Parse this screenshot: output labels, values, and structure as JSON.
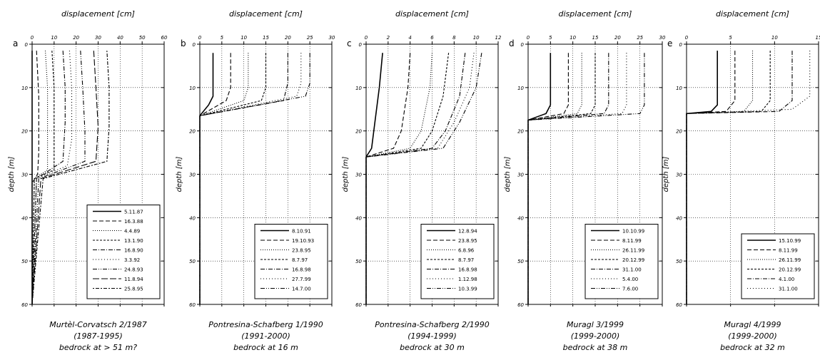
{
  "chart_data": [
    {
      "type": "line",
      "panel_letter": "a",
      "xlabel": "displacement [cm]",
      "ylabel": "depth [m]",
      "xlim": [
        0,
        60
      ],
      "ylim": [
        0,
        60
      ],
      "xticks": [
        "0",
        "10",
        "20",
        "30",
        "40",
        "50",
        "60"
      ],
      "yticks": [
        "0",
        "10",
        "20",
        "30",
        "40",
        "50",
        "60"
      ],
      "grid": true,
      "caption": [
        "Murtèl-Corvatsch 2/1987",
        "(1987-1995)",
        "bedrock at > 51 m?"
      ],
      "series": [
        {
          "name": "5.11.87",
          "style": "solid",
          "points": [
            [
              0,
              1.5
            ],
            [
              0,
              30
            ],
            [
              0,
              60
            ]
          ]
        },
        {
          "name": "16.3.88",
          "style": "dash",
          "points": [
            [
              2,
              1.5
            ],
            [
              3,
              12
            ],
            [
              3,
              25
            ],
            [
              2.5,
              30
            ],
            [
              0,
              32
            ],
            [
              0,
              60
            ]
          ]
        },
        {
          "name": "4.4.89",
          "style": "dot",
          "points": [
            [
              6,
              1.5
            ],
            [
              7,
              10
            ],
            [
              7,
              22
            ],
            [
              7,
              29
            ],
            [
              1,
              31
            ],
            [
              0,
              60
            ]
          ]
        },
        {
          "name": "13.1.90",
          "style": "dash2",
          "points": [
            [
              9,
              1.5
            ],
            [
              10,
              10
            ],
            [
              10,
              23
            ],
            [
              10,
              29
            ],
            [
              1,
              31
            ],
            [
              0,
              60
            ]
          ]
        },
        {
          "name": "16.8.90",
          "style": "dashdot",
          "points": [
            [
              14,
              1.5
            ],
            [
              15,
              10
            ],
            [
              15,
              18
            ],
            [
              14,
              27
            ],
            [
              2,
              31
            ],
            [
              0,
              60
            ]
          ]
        },
        {
          "name": "3.3.92",
          "style": "dot2",
          "points": [
            [
              17,
              1.5
            ],
            [
              18,
              10
            ],
            [
              18,
              22
            ],
            [
              16,
              28
            ],
            [
              2,
              31
            ],
            [
              0,
              60
            ]
          ]
        },
        {
          "name": "24.8.93",
          "style": "dashdotdot",
          "points": [
            [
              22,
              1.5
            ],
            [
              23,
              10
            ],
            [
              24,
              20
            ],
            [
              24,
              27
            ],
            [
              3,
              31
            ],
            [
              0,
              60
            ]
          ]
        },
        {
          "name": "11.8.94",
          "style": "longdash",
          "points": [
            [
              28,
              1.5
            ],
            [
              29,
              10
            ],
            [
              30,
              19
            ],
            [
              29,
              27
            ],
            [
              4,
              31
            ],
            [
              0,
              60
            ]
          ]
        },
        {
          "name": "25.8.95",
          "style": "dotdash",
          "points": [
            [
              34,
              1.5
            ],
            [
              35,
              10
            ],
            [
              35,
              19
            ],
            [
              34,
              27
            ],
            [
              5,
              31
            ],
            [
              0,
              60
            ]
          ]
        }
      ]
    },
    {
      "type": "line",
      "panel_letter": "b",
      "xlabel": "displacement [cm]",
      "ylabel": "depth [m]",
      "xlim": [
        0,
        30
      ],
      "ylim": [
        0,
        60
      ],
      "xticks": [
        "0",
        "5",
        "10",
        "15",
        "20",
        "25",
        "30"
      ],
      "yticks": [
        "0",
        "10",
        "20",
        "30",
        "40",
        "50",
        "60"
      ],
      "grid": true,
      "caption": [
        "Pontresina-Schafberg 1/1990",
        "(1991-2000)",
        "bedrock at 16 m"
      ],
      "series": [
        {
          "name": "8.10.91",
          "style": "solid",
          "points": [
            [
              3,
              2
            ],
            [
              3,
              12
            ],
            [
              2,
              14
            ],
            [
              0,
              16.5
            ],
            [
              0,
              60
            ]
          ]
        },
        {
          "name": "19.10.93",
          "style": "dash",
          "points": [
            [
              7,
              2
            ],
            [
              7,
              10
            ],
            [
              6,
              13
            ],
            [
              0,
              16.5
            ],
            [
              0,
              60
            ]
          ]
        },
        {
          "name": "23.8.95",
          "style": "dot",
          "points": [
            [
              11,
              2
            ],
            [
              11,
              10
            ],
            [
              10,
              13
            ],
            [
              0,
              16.5
            ],
            [
              0,
              60
            ]
          ]
        },
        {
          "name": "8.7.97",
          "style": "dash2",
          "points": [
            [
              15,
              2
            ],
            [
              15,
              10
            ],
            [
              14,
              13
            ],
            [
              0,
              16.5
            ],
            [
              0,
              60
            ]
          ]
        },
        {
          "name": "16.8.98",
          "style": "dashdot",
          "points": [
            [
              20,
              2
            ],
            [
              20,
              9
            ],
            [
              19,
              13
            ],
            [
              0,
              16.5
            ],
            [
              0,
              60
            ]
          ]
        },
        {
          "name": "27.7.99",
          "style": "dot2",
          "points": [
            [
              23,
              2
            ],
            [
              23,
              9
            ],
            [
              22,
              12
            ],
            [
              0,
              16.5
            ],
            [
              0,
              60
            ]
          ]
        },
        {
          "name": "14.7.00",
          "style": "dashdotdot",
          "points": [
            [
              25,
              2
            ],
            [
              25,
              9
            ],
            [
              24,
              12
            ],
            [
              0,
              16.5
            ],
            [
              0,
              60
            ]
          ]
        }
      ]
    },
    {
      "type": "line",
      "panel_letter": "c",
      "xlabel": "displacement [cm]",
      "ylabel": "depth [m]",
      "xlim": [
        0,
        12
      ],
      "ylim": [
        0,
        60
      ],
      "xticks": [
        "0",
        "2",
        "4",
        "6",
        "8",
        "10",
        "12"
      ],
      "yticks": [
        "0",
        "10",
        "20",
        "30",
        "40",
        "50",
        "60"
      ],
      "grid": true,
      "caption": [
        "Pontresina-Schafberg 2/1990",
        "(1994-1999)",
        "bedrock at 30 m"
      ],
      "series": [
        {
          "name": "12.8.94",
          "style": "solid",
          "points": [
            [
              1.5,
              2
            ],
            [
              1.2,
              10
            ],
            [
              0.8,
              18
            ],
            [
              0.5,
              24
            ],
            [
              0,
              26
            ],
            [
              0,
              60
            ]
          ]
        },
        {
          "name": "23.8.95",
          "style": "dash",
          "points": [
            [
              4,
              2
            ],
            [
              3.8,
              10
            ],
            [
              3.2,
              20
            ],
            [
              2.5,
              24
            ],
            [
              0,
              26
            ],
            [
              0,
              60
            ]
          ]
        },
        {
          "name": "6.8.96",
          "style": "dot",
          "points": [
            [
              6,
              2
            ],
            [
              5.8,
              10
            ],
            [
              5,
              20
            ],
            [
              4,
              24
            ],
            [
              0,
              26
            ],
            [
              0,
              60
            ]
          ]
        },
        {
          "name": "8.7.97",
          "style": "dash2",
          "points": [
            [
              7.5,
              2
            ],
            [
              7,
              12
            ],
            [
              6,
              20
            ],
            [
              5,
              24
            ],
            [
              0,
              26
            ],
            [
              0,
              60
            ]
          ]
        },
        {
          "name": "16.8.98",
          "style": "dashdot",
          "points": [
            [
              9,
              2
            ],
            [
              8.5,
              12
            ],
            [
              7.2,
              20
            ],
            [
              6,
              24
            ],
            [
              0,
              26
            ],
            [
              0,
              60
            ]
          ]
        },
        {
          "name": "1.12.98",
          "style": "dot2",
          "points": [
            [
              9.8,
              2
            ],
            [
              9.4,
              10
            ],
            [
              8,
              18
            ],
            [
              6.5,
              24
            ],
            [
              0,
              26
            ],
            [
              0,
              60
            ]
          ]
        },
        {
          "name": "10.3.99",
          "style": "dashdotdot",
          "points": [
            [
              10.5,
              2
            ],
            [
              10,
              10
            ],
            [
              8.5,
              18
            ],
            [
              7,
              24
            ],
            [
              0,
              26
            ],
            [
              0,
              60
            ]
          ]
        }
      ]
    },
    {
      "type": "line",
      "panel_letter": "d",
      "xlabel": "displacement [cm]",
      "ylabel": "depth [m]",
      "xlim": [
        0,
        30
      ],
      "ylim": [
        0,
        60
      ],
      "xticks": [
        "0",
        "5",
        "10",
        "15",
        "20",
        "25",
        "30"
      ],
      "yticks": [
        "0",
        "10",
        "20",
        "30",
        "40",
        "50",
        "60"
      ],
      "grid": true,
      "caption": [
        "Muragl 3/1999",
        "(1999-2000)",
        "bedrock at 38 m"
      ],
      "series": [
        {
          "name": "10.10.99",
          "style": "solid",
          "points": [
            [
              5,
              2
            ],
            [
              5,
              14
            ],
            [
              4,
              16
            ],
            [
              0,
              17.5
            ],
            [
              0,
              60
            ]
          ]
        },
        {
          "name": "8.11.99",
          "style": "dash",
          "points": [
            [
              9,
              2
            ],
            [
              9,
              14
            ],
            [
              8,
              16
            ],
            [
              0,
              17.5
            ],
            [
              0,
              60
            ]
          ]
        },
        {
          "name": "26.11.99",
          "style": "dot",
          "points": [
            [
              12,
              2
            ],
            [
              12,
              14
            ],
            [
              11,
              16
            ],
            [
              0,
              17.5
            ],
            [
              0,
              60
            ]
          ]
        },
        {
          "name": "20.12.99",
          "style": "dash2",
          "points": [
            [
              15,
              2
            ],
            [
              15,
              14
            ],
            [
              14,
              16
            ],
            [
              0,
              17.5
            ],
            [
              0,
              60
            ]
          ]
        },
        {
          "name": "31.1.00",
          "style": "dashdot",
          "points": [
            [
              18,
              2
            ],
            [
              18,
              14
            ],
            [
              17,
              16
            ],
            [
              0,
              17.5
            ],
            [
              0,
              60
            ]
          ]
        },
        {
          "name": "5.4.00",
          "style": "dot2",
          "points": [
            [
              22,
              2
            ],
            [
              22,
              14
            ],
            [
              21,
              16
            ],
            [
              0,
              17.5
            ],
            [
              0,
              60
            ]
          ]
        },
        {
          "name": "7.6.00",
          "style": "dashdotdot",
          "points": [
            [
              26,
              2
            ],
            [
              26,
              14
            ],
            [
              25,
              16
            ],
            [
              0,
              17.5
            ],
            [
              0,
              60
            ]
          ]
        }
      ]
    },
    {
      "type": "line",
      "panel_letter": "e",
      "xlabel": "displacement [cm]",
      "ylabel": "depth [m]",
      "xlim": [
        0,
        15
      ],
      "ylim": [
        0,
        60
      ],
      "xticks": [
        "0",
        "5",
        "10",
        "15"
      ],
      "yticks": [
        "0",
        "10",
        "20",
        "30",
        "40",
        "50",
        "60"
      ],
      "grid": true,
      "caption": [
        "Muragl 4/1999",
        "(1999-2000)",
        "bedrock at 32 m"
      ],
      "series": [
        {
          "name": "15.10.99",
          "style": "solid",
          "points": [
            [
              3.5,
              1.5
            ],
            [
              3.5,
              14
            ],
            [
              2.8,
              15.5
            ],
            [
              0,
              16
            ],
            [
              0,
              60
            ]
          ]
        },
        {
          "name": "8.11.99",
          "style": "dash",
          "points": [
            [
              5.5,
              1.5
            ],
            [
              5.5,
              13
            ],
            [
              4.5,
              15.5
            ],
            [
              0,
              16
            ],
            [
              0,
              60
            ]
          ]
        },
        {
          "name": "26.11.99",
          "style": "dot",
          "points": [
            [
              7.5,
              1.5
            ],
            [
              7.5,
              13
            ],
            [
              6.5,
              15.5
            ],
            [
              0,
              16
            ],
            [
              0,
              60
            ]
          ]
        },
        {
          "name": "20.12.99",
          "style": "dash2",
          "points": [
            [
              9.5,
              1.5
            ],
            [
              9.5,
              13
            ],
            [
              8.5,
              15.5
            ],
            [
              0,
              16
            ],
            [
              0,
              60
            ]
          ]
        },
        {
          "name": "4.1.00",
          "style": "dashdot",
          "points": [
            [
              12,
              1.5
            ],
            [
              12,
              13
            ],
            [
              10.5,
              15.5
            ],
            [
              0,
              16
            ],
            [
              0,
              60
            ]
          ]
        },
        {
          "name": "31.1.00",
          "style": "dot2",
          "points": [
            [
              14,
              1.5
            ],
            [
              14,
              12
            ],
            [
              12,
              15
            ],
            [
              0,
              16
            ],
            [
              0,
              60
            ]
          ]
        }
      ]
    }
  ]
}
